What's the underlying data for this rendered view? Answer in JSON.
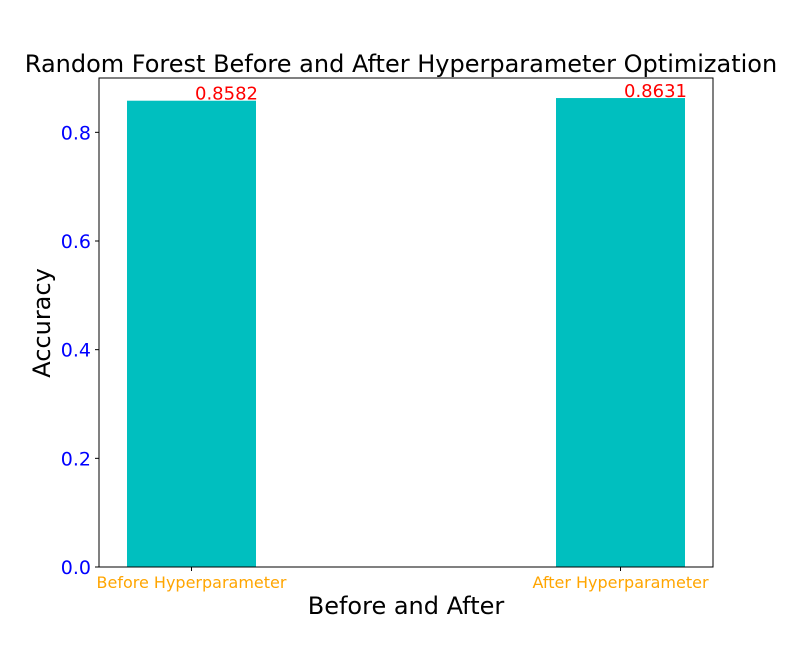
{
  "chart_data": {
    "type": "bar",
    "title": "Random Forest Before and After Hyperparameter Optimization",
    "xlabel": "Before and After",
    "ylabel": "Accuracy",
    "categories": [
      "Before Hyperparameter",
      "After Hyperparameter"
    ],
    "values": [
      0.8582,
      0.8631
    ],
    "value_labels": [
      "0.8582",
      "0.8631"
    ],
    "ylim": [
      0,
      0.9
    ],
    "yticks": [
      0.0,
      0.2,
      0.4,
      0.6,
      0.8
    ],
    "ytick_labels": [
      "0.0",
      "0.2",
      "0.4",
      "0.6",
      "0.8"
    ],
    "grid": false,
    "legend": "none",
    "colors": {
      "bar": "#00bfbf",
      "value_label": "#ff0000",
      "ytick": "#0000ff",
      "xtick": "#ffa500",
      "axis": "#000000"
    }
  }
}
